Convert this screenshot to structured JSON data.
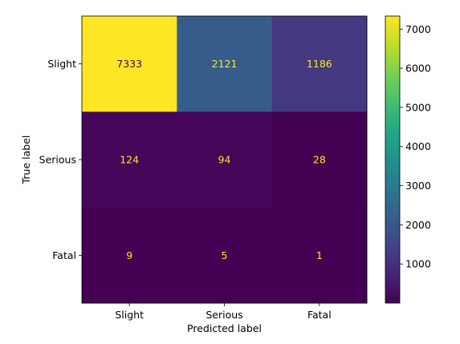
{
  "chart_data": {
    "type": "heatmap",
    "title": "",
    "xlabel": "Predicted label",
    "ylabel": "True label",
    "x_categories": [
      "Slight",
      "Serious",
      "Fatal"
    ],
    "y_categories": [
      "Slight",
      "Serious",
      "Fatal"
    ],
    "matrix": [
      [
        7333,
        2121,
        1186
      ],
      [
        124,
        94,
        28
      ],
      [
        9,
        5,
        1
      ]
    ],
    "colormap": "viridis",
    "colorbar": {
      "range": [
        1,
        7333
      ],
      "ticks": [
        1000,
        2000,
        3000,
        4000,
        5000,
        6000,
        7000
      ]
    },
    "text_colors": {
      "on_bright": "#440154",
      "on_dark": "#fde725"
    }
  }
}
